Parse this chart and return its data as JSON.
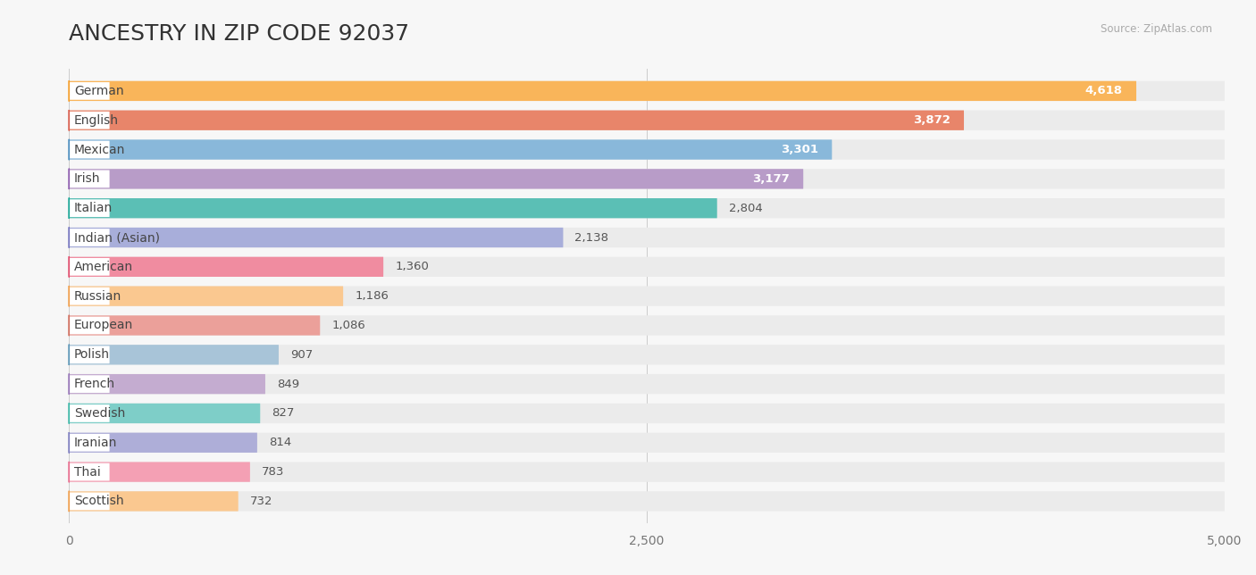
{
  "title": "ANCESTRY IN ZIP CODE 92037",
  "source": "Source: ZipAtlas.com",
  "categories": [
    "German",
    "English",
    "Mexican",
    "Irish",
    "Italian",
    "Indian (Asian)",
    "American",
    "Russian",
    "European",
    "Polish",
    "French",
    "Swedish",
    "Iranian",
    "Thai",
    "Scottish"
  ],
  "values": [
    4618,
    3872,
    3301,
    3177,
    2804,
    2138,
    1360,
    1186,
    1086,
    907,
    849,
    827,
    814,
    783,
    732
  ],
  "bar_colors": [
    "#F9B55A",
    "#E8856A",
    "#89B8DA",
    "#B89CC8",
    "#5BBFB5",
    "#A8AEDA",
    "#F08CA0",
    "#FAC890",
    "#EBA09A",
    "#A8C4D8",
    "#C4ACD0",
    "#7ECEC8",
    "#AEAED8",
    "#F4A0B4",
    "#FAC890"
  ],
  "dot_colors": [
    "#F4A030",
    "#D96050",
    "#5090C0",
    "#9060B0",
    "#20A898",
    "#7878C0",
    "#E05070",
    "#F0A050",
    "#D07060",
    "#6098B8",
    "#9878B8",
    "#40B8A8",
    "#8080C0",
    "#E87090",
    "#F0A050"
  ],
  "xlim": [
    0,
    5000
  ],
  "xticks": [
    0,
    2500,
    5000
  ],
  "background_color": "#F7F7F7",
  "bar_bg_color": "#EBEBEB",
  "title_fontsize": 18,
  "label_fontsize": 10,
  "value_fontsize": 9.5,
  "bar_height": 0.68
}
